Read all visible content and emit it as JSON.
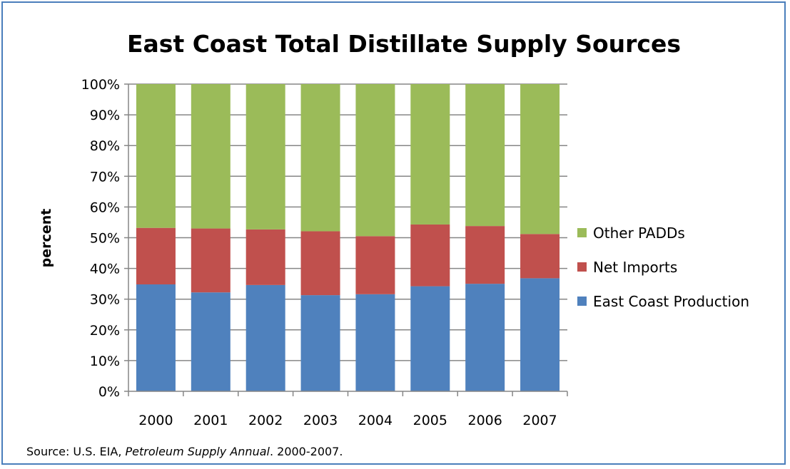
{
  "chart_data": {
    "type": "bar",
    "stacked": true,
    "title": "East Coast Total Distillate Supply Sources",
    "xlabel": "",
    "ylabel": "percent",
    "ylim": [
      0,
      100
    ],
    "y_tick_labels": [
      "0%",
      "10%",
      "20%",
      "30%",
      "40%",
      "50%",
      "60%",
      "70%",
      "80%",
      "90%",
      "100%"
    ],
    "categories": [
      "2000",
      "2001",
      "2002",
      "2003",
      "2004",
      "2005",
      "2006",
      "2007"
    ],
    "series": [
      {
        "name": "East Coast Production",
        "color": "#4f81bd",
        "values": [
          34.8,
          32.2,
          34.6,
          31.3,
          31.6,
          34.2,
          35.0,
          36.8
        ]
      },
      {
        "name": "Net Imports",
        "color": "#c0504d",
        "values": [
          18.4,
          20.8,
          18.1,
          20.8,
          18.9,
          20.1,
          18.8,
          14.4
        ]
      },
      {
        "name": "Other PADDs",
        "color": "#9bbb59",
        "values": [
          46.8,
          47.0,
          47.3,
          47.9,
          49.5,
          45.7,
          46.2,
          48.8
        ]
      }
    ],
    "legend_order": [
      "Other PADDs",
      "Net Imports",
      "East Coast Production"
    ],
    "legend_position": "right",
    "grid": true
  },
  "source": {
    "prefix": "Source: U.S. EIA, ",
    "publication": "Petroleum Supply Annual",
    "suffix": ". 2000-2007."
  }
}
